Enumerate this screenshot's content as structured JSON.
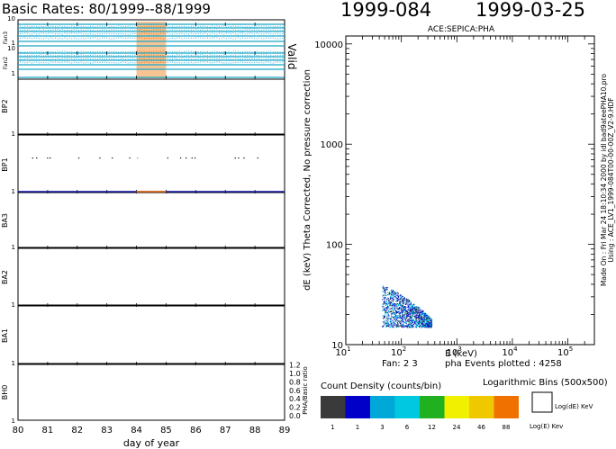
{
  "header": {
    "left_title": "Basic Rates: 80/1999--88/1999",
    "doy_label": "1999-084",
    "date_label": "1999-03-25"
  },
  "chart_data": [
    {
      "type": "line",
      "title": "Basic Rates: 80/1999--88/1999",
      "xlabel": "day of year",
      "x_ticks": [
        "80",
        "81",
        "82",
        "83",
        "84",
        "85",
        "86",
        "87",
        "88",
        "89"
      ],
      "xlim": [
        80,
        89
      ],
      "highlight_range": [
        84,
        85
      ],
      "panels": [
        {
          "name": "Fan3",
          "tick_labels": [
            "10",
            "1"
          ]
        },
        {
          "name": "Fan2",
          "tick_labels": [
            "10",
            "1"
          ]
        },
        {
          "name": "BP2",
          "tick_labels": [
            "1"
          ]
        },
        {
          "name": "BP1",
          "tick_labels": [
            "1"
          ]
        },
        {
          "name": "BA3",
          "tick_labels": [
            "1"
          ]
        },
        {
          "name": "BA2",
          "tick_labels": [
            "1"
          ]
        },
        {
          "name": "BA1",
          "tick_labels": [
            "1"
          ]
        },
        {
          "name": "BH0",
          "tick_labels": [
            "1"
          ]
        }
      ],
      "valid_label": "Valid",
      "ratio_axis_label": "PHA/Basic ratio",
      "ratio_ticks": [
        "0.0",
        "0.2",
        "0.4",
        "0.6",
        "0.8",
        "1.0",
        "1.2"
      ]
    },
    {
      "type": "scatter",
      "title": "ACE:SEPICA:PHA",
      "xlabel": "E (keV)",
      "ylabel": "dE (keV) Theta Corrected, No pressure correction",
      "x_scale": "log",
      "y_scale": "log",
      "xlim": [
        10,
        300000
      ],
      "ylim": [
        10,
        12000
      ],
      "x_ticks": [
        {
          "base": "10",
          "exp": "1"
        },
        {
          "base": "10",
          "exp": "2"
        },
        {
          "base": "10",
          "exp": "3"
        },
        {
          "base": "10",
          "exp": "4"
        },
        {
          "base": "10",
          "exp": "5"
        }
      ],
      "y_ticks": [
        "10",
        "100",
        "1000",
        "10000"
      ],
      "cluster": {
        "e_range": [
          45,
          350
        ],
        "de_range": [
          15,
          40
        ]
      }
    }
  ],
  "footer": {
    "fan_label": "Fan:  2 3",
    "events_label": "pha Events plotted : 4258",
    "side_made_on": "Made On : Fri Mar 24 18:10:34 2000  by  idl bad9ateePHA10.pro",
    "side_using": "Using : ACE_LV1_1999-084T00-00-00Z_V2-9.HDF"
  },
  "legend": {
    "title": "Count Density (counts/bin)",
    "bins_title": "Logarithmic Bins (500x500)",
    "boxes": [
      {
        "color": "#3a3a3a",
        "label": "1"
      },
      {
        "color": "#0000c8",
        "label": "1"
      },
      {
        "color": "#00a8d8",
        "label": "3"
      },
      {
        "color": "#00c8e0",
        "label": "6"
      },
      {
        "color": "#20b020",
        "label": "12"
      },
      {
        "color": "#f0f000",
        "label": "24"
      },
      {
        "color": "#f0c800",
        "label": "46"
      },
      {
        "color": "#f07000",
        "label": "88"
      }
    ],
    "log_de": "Log(dE) KeV",
    "log_e": "Log(E) Kev"
  }
}
